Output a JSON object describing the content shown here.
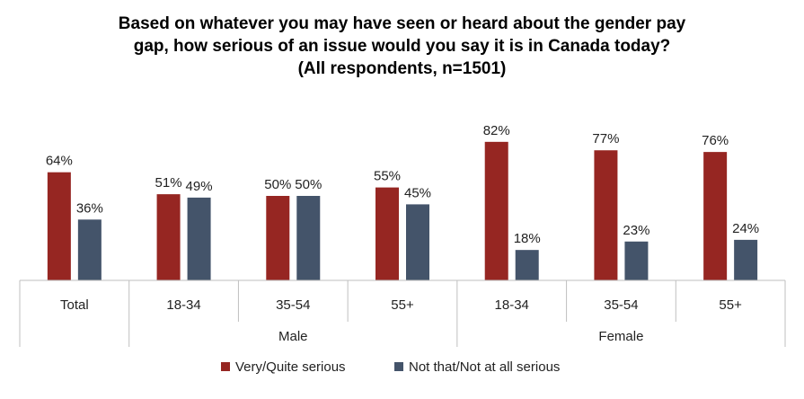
{
  "title": {
    "line1": "Based on whatever you may have seen or heard about the gender pay",
    "line2": "gap, how serious of an issue would you say it is in Canada today?",
    "line3": "(All respondents, n=1501)"
  },
  "chart_data": {
    "type": "bar",
    "title": "Based on whatever you may have seen or heard about the gender pay gap, how serious of an issue would you say it is in Canada today? (All respondents, n=1501)",
    "categories": [
      "Total",
      "18-34",
      "35-54",
      "55+",
      "18-34",
      "35-54",
      "55+"
    ],
    "groups": [
      {
        "label": "",
        "categories": [
          "Total"
        ]
      },
      {
        "label": "Male",
        "categories": [
          "18-34",
          "35-54",
          "55+"
        ]
      },
      {
        "label": "Female",
        "categories": [
          "18-34",
          "35-54",
          "55+"
        ]
      }
    ],
    "series": [
      {
        "name": "Very/Quite serious",
        "color": "#962622",
        "values": [
          64,
          51,
          50,
          55,
          82,
          77,
          76
        ]
      },
      {
        "name": "Not that/Not at all serious",
        "color": "#44546a",
        "values": [
          36,
          49,
          50,
          45,
          18,
          23,
          24
        ]
      }
    ],
    "value_suffix": "%",
    "ylim": [
      0,
      100
    ],
    "grid": false,
    "legend_position": "bottom"
  }
}
